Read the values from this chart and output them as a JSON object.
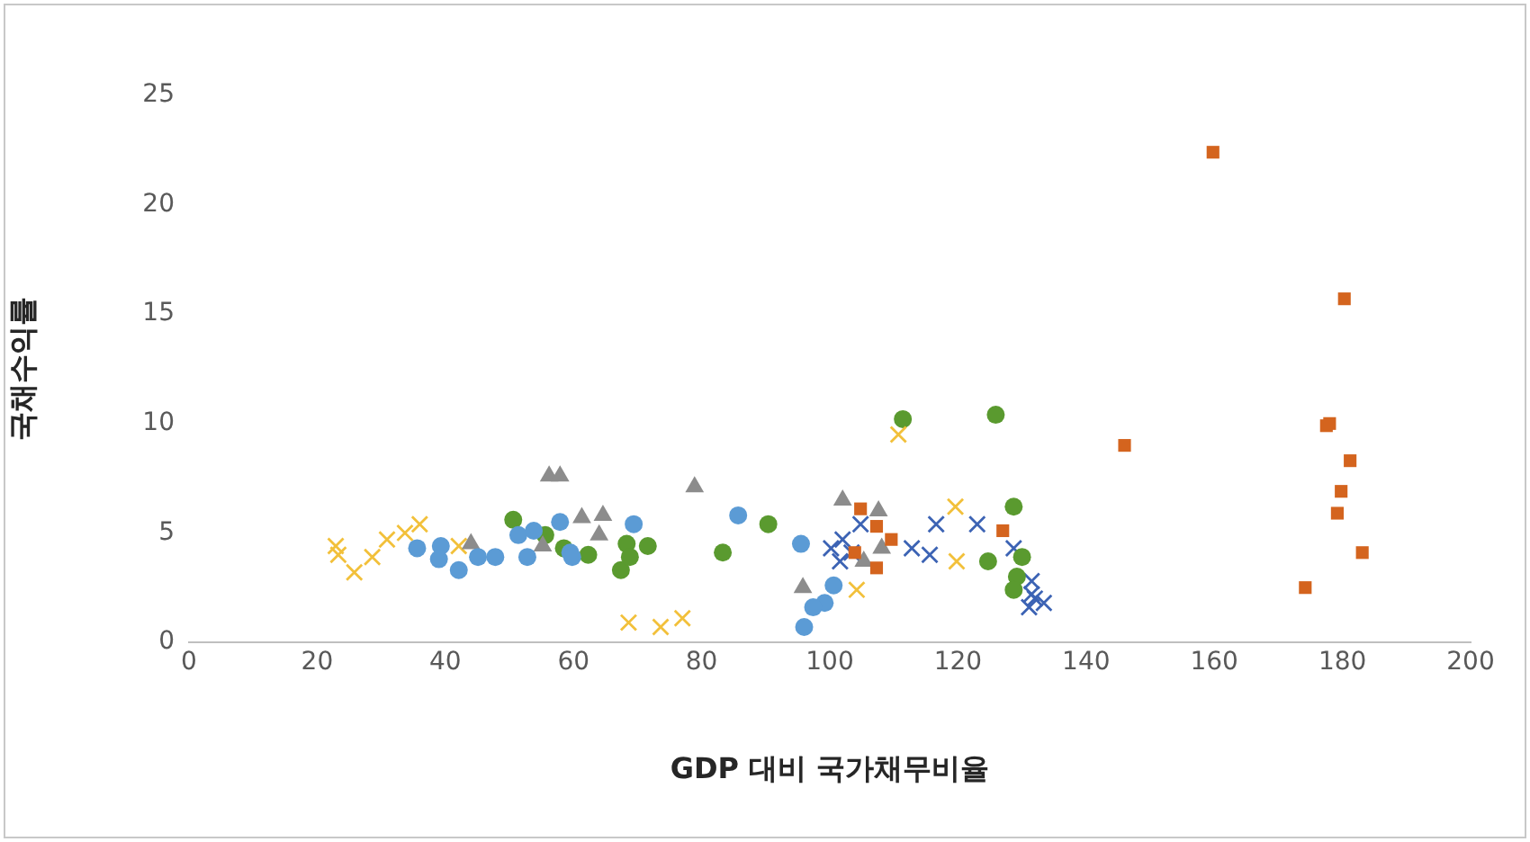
{
  "chart_data": {
    "type": "scatter",
    "xlabel": "GDP 대비 국가채무비율",
    "ylabel": "국채수익률",
    "xlim": [
      0,
      200
    ],
    "xticks": [
      0,
      20,
      40,
      60,
      80,
      100,
      120,
      140,
      160,
      180,
      200
    ],
    "ylim": [
      0,
      25
    ],
    "yticks": [
      0,
      5,
      10,
      15,
      20,
      25
    ],
    "grid": false,
    "legend": false,
    "series": [
      {
        "color": "#5b9bd5",
        "marker": "circle",
        "x": [
          35.6,
          39.3,
          39,
          42.1,
          45.1,
          47.8,
          51.4,
          53.8,
          52.8,
          57.9,
          59.5,
          59.8,
          69.4,
          85.7,
          95.5,
          100.6,
          99.2,
          97.4,
          96
        ],
        "values": [
          4.3,
          4.4,
          3.8,
          3.3,
          3.9,
          3.9,
          4.9,
          5.1,
          3.9,
          5.5,
          4.1,
          3.9,
          5.4,
          5.8,
          4.5,
          2.6,
          1.8,
          1.6,
          0.7
        ]
      },
      {
        "color": "#d4641e",
        "marker": "square",
        "x": [
          159.8,
          180.3,
          177.5,
          178,
          181.2,
          179.8,
          179.2,
          183.1,
          174.2,
          146,
          127,
          104.8,
          107.3,
          109.6,
          103.9,
          107.3
        ],
        "values": [
          22.4,
          15.7,
          9.9,
          10,
          8.3,
          6.9,
          5.9,
          4.1,
          2.5,
          9,
          5.1,
          6.1,
          5.3,
          4.7,
          4.1,
          3.4
        ]
      },
      {
        "color": "#8c8c8c",
        "marker": "triangle",
        "x": [
          56.2,
          57.9,
          78.9,
          61.3,
          64.6,
          44,
          55.2,
          64,
          102,
          107.6,
          95.8,
          108.1,
          105.3
        ],
        "values": [
          7.6,
          7.6,
          7.1,
          5.7,
          5.8,
          4.5,
          4.4,
          4.9,
          6.5,
          6,
          2.5,
          4.3,
          3.7
        ]
      },
      {
        "color": "#f2c03a",
        "marker": "cross",
        "x": [
          23.3,
          25.8,
          28.6,
          30.9,
          33.7,
          36,
          42.1,
          22.9,
          68.6,
          73.6,
          77,
          110.7,
          119.6,
          119.8,
          104.2
        ],
        "values": [
          4,
          3.2,
          3.9,
          4.7,
          5,
          5.4,
          4.4,
          4.4,
          0.9,
          0.7,
          1.1,
          9.5,
          6.2,
          3.7,
          2.4
        ]
      },
      {
        "color": "#5a9a2f",
        "marker": "circle",
        "x": [
          50.6,
          55.6,
          58.5,
          62.3,
          68.3,
          71.6,
          67.4,
          68.8,
          83.3,
          90.4,
          111.4,
          125.9,
          128.7,
          124.7,
          130,
          129.2,
          128.7
        ],
        "values": [
          5.6,
          4.9,
          4.3,
          4,
          4.5,
          4.4,
          3.3,
          3.9,
          4.1,
          5.4,
          10.2,
          10.4,
          6.2,
          3.7,
          3.9,
          3,
          2.4
        ]
      },
      {
        "color": "#3c63b4",
        "marker": "cross",
        "x": [
          100.2,
          102,
          101.6,
          104.8,
          103.4,
          116.6,
          112.8,
          115.6,
          123,
          128.7,
          131.5,
          132,
          133.4,
          131.1,
          131.5
        ],
        "values": [
          4.3,
          4.7,
          3.7,
          5.4,
          4.1,
          5.4,
          4.3,
          4,
          5.4,
          4.3,
          2.8,
          2,
          1.8,
          1.6,
          2.2
        ]
      }
    ]
  }
}
